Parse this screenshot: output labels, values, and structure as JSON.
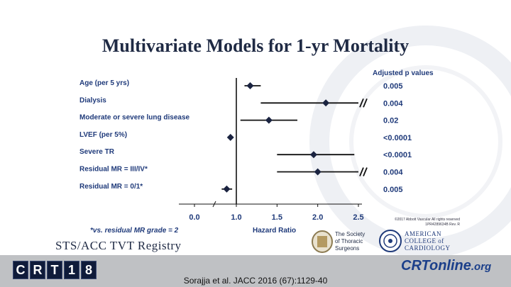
{
  "slide": {
    "title": "Multivariate Models for 1-yr Mortality",
    "footnote": "*vs. residual MR grade = 2",
    "copyright_line1": "©2017 Abbott Vascular All rights reserved",
    "copyright_line2": "1PR4289634B Rev. R",
    "registry": "STS/ACC TVT Registry",
    "sts_name": [
      "The Society",
      "of Thoracic",
      "Surgeons"
    ],
    "acc_name": [
      "AMERICAN",
      "COLLEGE of",
      "CARDIOLOGY"
    ],
    "citation": "Sorajja et al. JACC 2016 (67):1129-40",
    "crt_logo_letters": [
      "C",
      "R",
      "T",
      "1",
      "8"
    ],
    "crtonline_main": "CRTonline",
    "crtonline_suffix": ".org"
  },
  "chart_data": {
    "type": "forest",
    "title": "Multivariate Models for 1-yr Mortality",
    "xlabel": "Hazard Ratio",
    "xlim": [
      0.0,
      2.5
    ],
    "xticks": [
      "0.0",
      "1.0",
      "1.5",
      "2.0",
      "2.5"
    ],
    "reference_line": 1.0,
    "pvalue_header": "Adjusted p values",
    "rows": [
      {
        "label": "Age (per 5 yrs)",
        "hr": 1.17,
        "lo": 1.1,
        "hi": 1.3,
        "pvalue": "0.005",
        "truncated": false
      },
      {
        "label": "Dialysis",
        "hr": 2.1,
        "lo": 1.3,
        "hi": 2.5,
        "pvalue": "0.004",
        "truncated": true
      },
      {
        "label": "Moderate or severe lung disease",
        "hr": 1.4,
        "lo": 1.05,
        "hi": 1.75,
        "pvalue": "0.02",
        "truncated": false
      },
      {
        "label": "LVEF (per 5%)",
        "hr": 0.86,
        "lo": 0.83,
        "hi": 0.9,
        "pvalue": "<0.0001",
        "truncated": false
      },
      {
        "label": "Severe TR",
        "hr": 1.95,
        "lo": 1.5,
        "hi": 2.45,
        "pvalue": "<0.0001",
        "truncated": false
      },
      {
        "label": "Residual MR = III/IV*",
        "hr": 2.0,
        "lo": 1.5,
        "hi": 2.5,
        "pvalue": "0.004",
        "truncated": true
      },
      {
        "label": "Residual MR = 0/1*",
        "hr": 0.77,
        "lo": 0.65,
        "hi": 0.9,
        "pvalue": "0.005",
        "truncated": false
      }
    ]
  }
}
